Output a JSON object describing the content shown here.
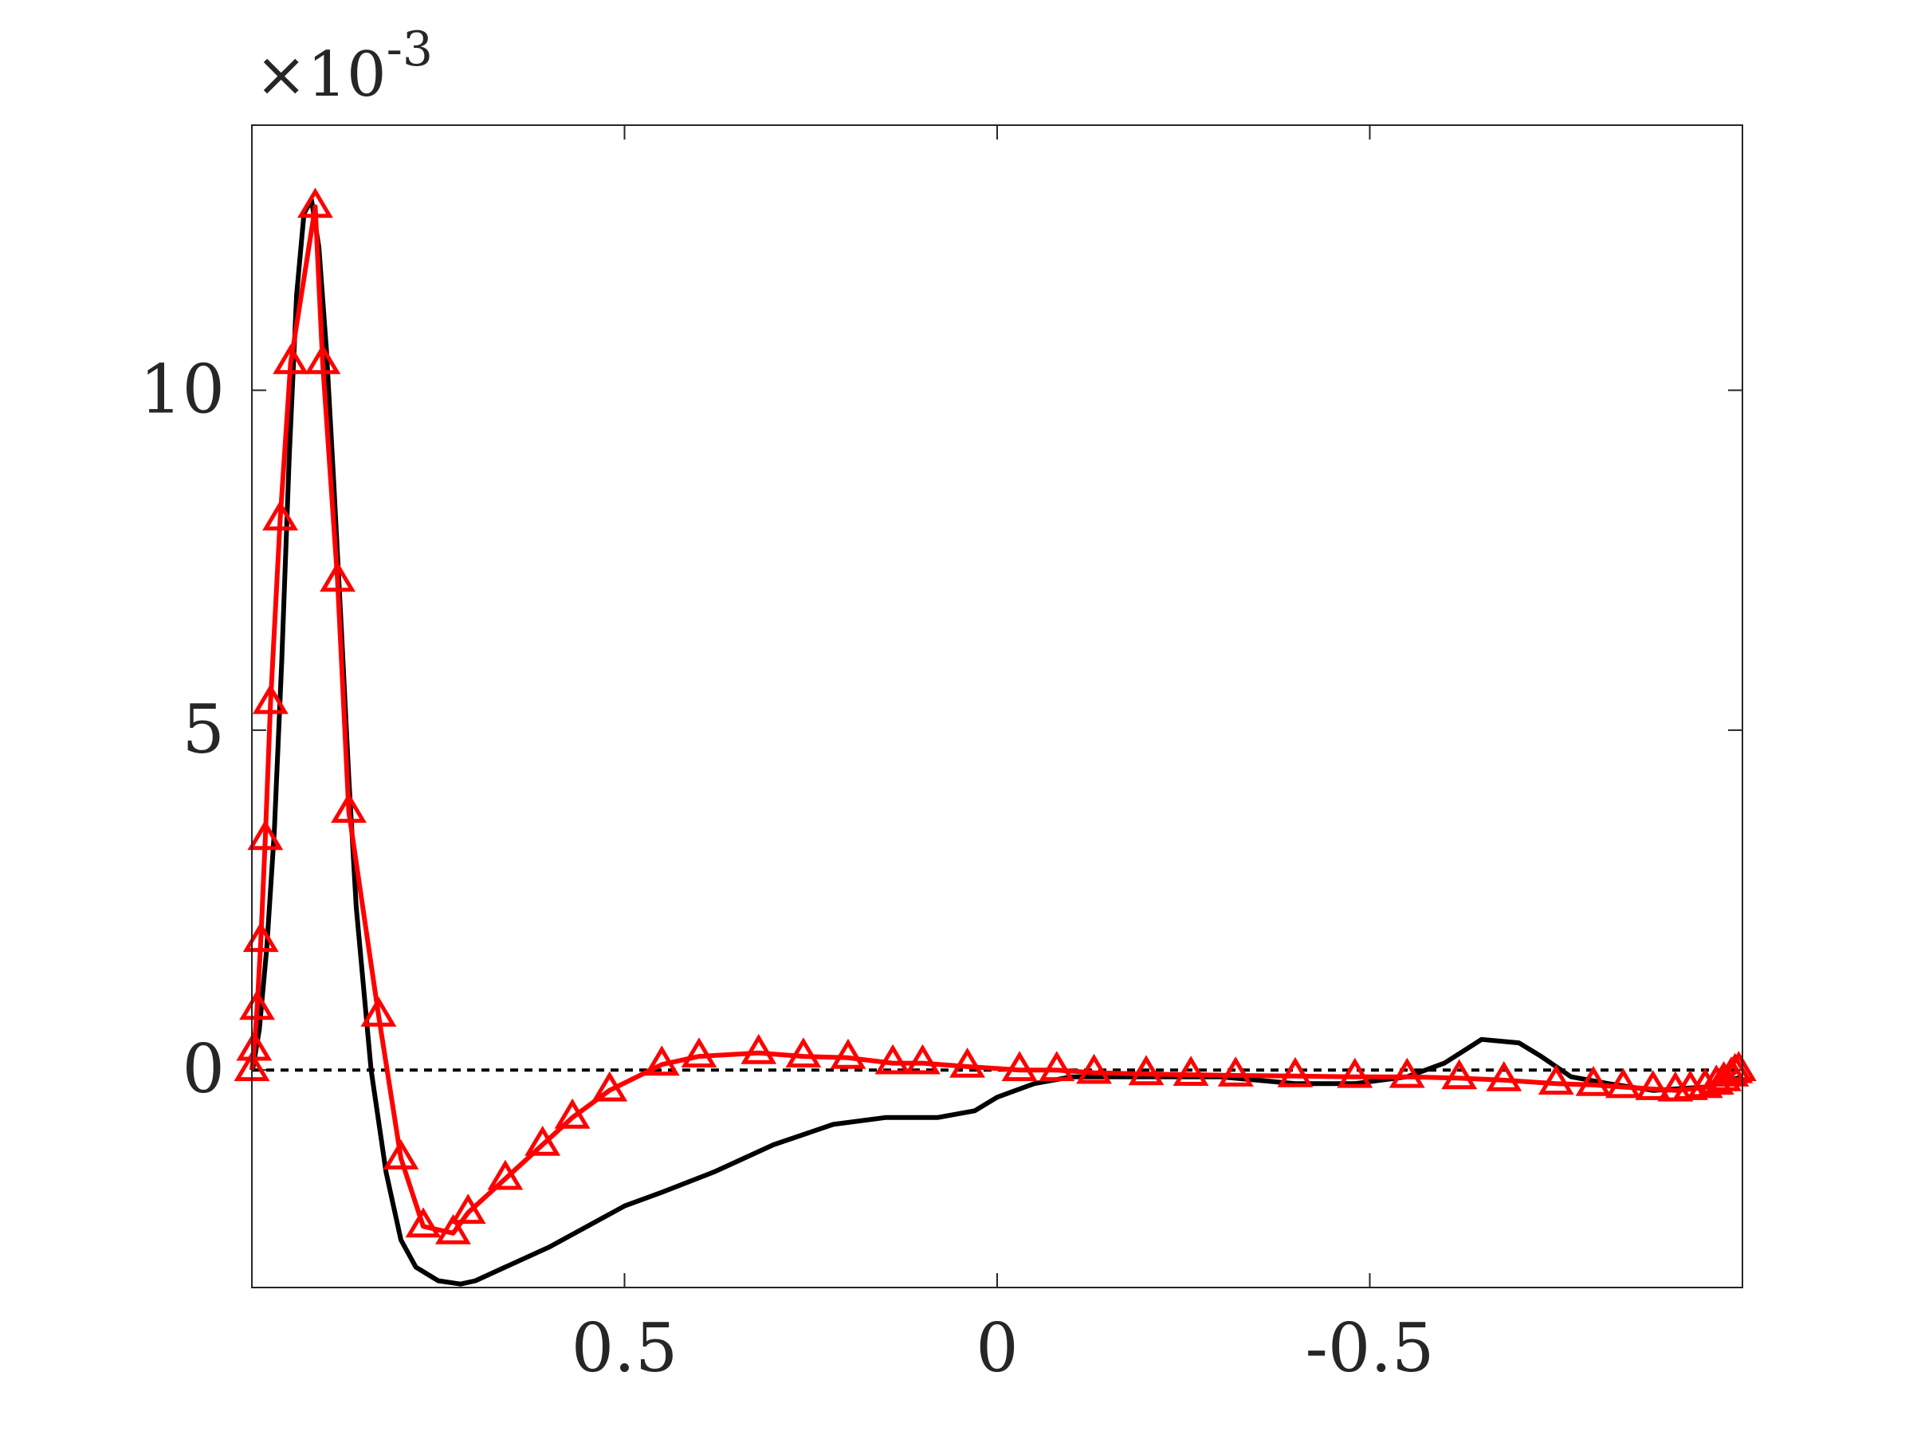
{
  "chart_data": {
    "type": "line",
    "title": "",
    "xlabel": "",
    "ylabel": "",
    "x_reversed": true,
    "xlim": [
      1.0,
      -1.0
    ],
    "ylim": [
      -0.0032,
      0.0139
    ],
    "y_exponent_label": {
      "base": "×10",
      "exponent": "-3"
    },
    "x_ticks": [
      {
        "value": 0.5,
        "label": "0.5"
      },
      {
        "value": 0.0,
        "label": "0"
      },
      {
        "value": -0.5,
        "label": "-0.5"
      }
    ],
    "y_ticks": [
      {
        "value": 0.0,
        "label": "0"
      },
      {
        "value": 0.005,
        "label": "5"
      },
      {
        "value": 0.01,
        "label": "10"
      }
    ],
    "grid": false,
    "legend": "none",
    "series": [
      {
        "color": "#000000",
        "style": "dashed",
        "marker": "none",
        "points": [
          [
            1.0,
            0.0
          ],
          [
            -1.0,
            0.0
          ]
        ]
      },
      {
        "color": "#000000",
        "style": "solid",
        "marker": "none",
        "points": [
          [
            0.999,
            0.0
          ],
          [
            0.99,
            0.0006
          ],
          [
            0.98,
            0.0018
          ],
          [
            0.97,
            0.0035
          ],
          [
            0.96,
            0.006
          ],
          [
            0.95,
            0.009
          ],
          [
            0.94,
            0.0114
          ],
          [
            0.93,
            0.0126
          ],
          [
            0.92,
            0.0128
          ],
          [
            0.91,
            0.0121
          ],
          [
            0.9,
            0.0106
          ],
          [
            0.89,
            0.0086
          ],
          [
            0.88,
            0.0065
          ],
          [
            0.87,
            0.0043
          ],
          [
            0.86,
            0.0024
          ],
          [
            0.84,
            0.0
          ],
          [
            0.82,
            -0.0015
          ],
          [
            0.8,
            -0.0025
          ],
          [
            0.78,
            -0.0029
          ],
          [
            0.75,
            -0.0031
          ],
          [
            0.72,
            -0.00315
          ],
          [
            0.7,
            -0.0031
          ],
          [
            0.66,
            -0.0029
          ],
          [
            0.6,
            -0.0026
          ],
          [
            0.55,
            -0.0023
          ],
          [
            0.5,
            -0.002
          ],
          [
            0.45,
            -0.0018
          ],
          [
            0.38,
            -0.0015
          ],
          [
            0.3,
            -0.0011
          ],
          [
            0.22,
            -0.0008
          ],
          [
            0.15,
            -0.0007
          ],
          [
            0.08,
            -0.0007
          ],
          [
            0.03,
            -0.0006
          ],
          [
            0.0,
            -0.0004
          ],
          [
            -0.05,
            -0.0002
          ],
          [
            -0.1,
            -0.0001
          ],
          [
            -0.2,
            -0.0001
          ],
          [
            -0.3,
            -0.0001
          ],
          [
            -0.4,
            -0.0002
          ],
          [
            -0.48,
            -0.0002
          ],
          [
            -0.55,
            -0.0001
          ],
          [
            -0.6,
            0.0001
          ],
          [
            -0.65,
            0.00045
          ],
          [
            -0.7,
            0.0004
          ],
          [
            -0.73,
            0.0002
          ],
          [
            -0.77,
            -0.0001
          ],
          [
            -0.82,
            -0.0002
          ],
          [
            -0.88,
            -0.0003
          ],
          [
            -0.95,
            -0.00025
          ],
          [
            -1.0,
            -0.0001
          ]
        ]
      },
      {
        "color": "#ff0000",
        "style": "solid",
        "marker": "triangle-up",
        "points": [
          [
            1.0,
            0.0
          ],
          [
            0.997,
            0.0003
          ],
          [
            0.993,
            0.0009
          ],
          [
            0.988,
            0.0019
          ],
          [
            0.982,
            0.0034
          ],
          [
            0.975,
            0.0054
          ],
          [
            0.962,
            0.0081
          ],
          [
            0.948,
            0.0104
          ],
          [
            0.915,
            0.0127
          ],
          [
            0.905,
            0.0104
          ],
          [
            0.885,
            0.0072
          ],
          [
            0.87,
            0.0038
          ],
          [
            0.83,
            0.0008
          ],
          [
            0.8,
            -0.0013
          ],
          [
            0.77,
            -0.0023
          ],
          [
            0.73,
            -0.0024
          ],
          [
            0.71,
            -0.0021
          ],
          [
            0.66,
            -0.0016
          ],
          [
            0.61,
            -0.0011
          ],
          [
            0.57,
            -0.0007
          ],
          [
            0.52,
            -0.0003
          ],
          [
            0.45,
            8e-05
          ],
          [
            0.4,
            0.0002
          ],
          [
            0.32,
            0.00025
          ],
          [
            0.26,
            0.0002
          ],
          [
            0.2,
            0.00018
          ],
          [
            0.14,
            0.0001
          ],
          [
            0.1,
            0.0001
          ],
          [
            0.04,
            5e-05
          ],
          [
            -0.03,
            0.0
          ],
          [
            -0.08,
            0.0
          ],
          [
            -0.13,
            -4e-05
          ],
          [
            -0.2,
            -6e-05
          ],
          [
            -0.26,
            -7e-05
          ],
          [
            -0.32,
            -8e-05
          ],
          [
            -0.4,
            -9e-05
          ],
          [
            -0.48,
            -0.0001
          ],
          [
            -0.55,
            -0.0001
          ],
          [
            -0.62,
            -0.00012
          ],
          [
            -0.68,
            -0.00015
          ],
          [
            -0.75,
            -0.0002
          ],
          [
            -0.8,
            -0.00022
          ],
          [
            -0.84,
            -0.00025
          ],
          [
            -0.88,
            -0.00028
          ],
          [
            -0.91,
            -0.0003
          ],
          [
            -0.93,
            -0.00028
          ],
          [
            -0.95,
            -0.00025
          ],
          [
            -0.965,
            -0.0002
          ],
          [
            -0.975,
            -0.00015
          ],
          [
            -0.985,
            -8e-05
          ],
          [
            -0.99,
            -3e-05
          ],
          [
            -0.995,
            0.0
          ]
        ]
      }
    ]
  }
}
